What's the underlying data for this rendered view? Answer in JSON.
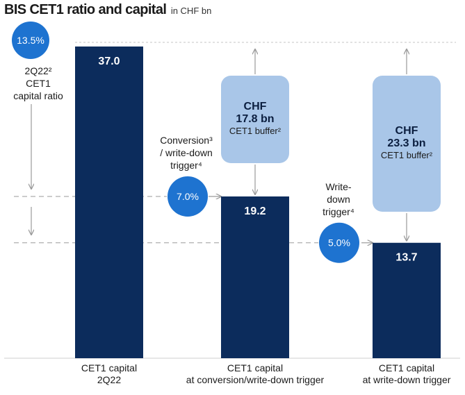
{
  "title": "BIS CET1 ratio and capital",
  "unit": "in CHF bn",
  "colors": {
    "bar": "#0c2c5c",
    "buffer": "#a9c6e8",
    "circle": "#1e73d0",
    "guide": "#9a9a9a"
  },
  "chart_data": {
    "type": "bar",
    "title": "BIS CET1 ratio and capital",
    "unit": "in CHF bn",
    "ylim": [
      0,
      37.0
    ],
    "categories": [
      [
        "CET1 capital",
        "2Q22"
      ],
      [
        "CET1 capital",
        "at conversion/write-down trigger"
      ],
      [
        "CET1 capital",
        "at write-down trigger"
      ]
    ],
    "values": [
      37.0,
      19.2,
      13.7
    ],
    "value_labels": [
      "37.0",
      "19.2",
      "13.7"
    ],
    "buffers": [
      {
        "bar_index": 1,
        "lines": [
          "CHF",
          "17.8 bn",
          "CET1 buffer²"
        ],
        "value": 17.8
      },
      {
        "bar_index": 2,
        "lines": [
          "CHF",
          "23.3 bn",
          "CET1 buffer²"
        ],
        "value": 23.3
      }
    ],
    "ratios": [
      {
        "label": "13.5%",
        "value": 37.0,
        "note": [
          "2Q22²",
          "CET1",
          "capital ratio"
        ]
      },
      {
        "label": "7.0%",
        "value": 19.2,
        "note": [
          "Conversion³",
          "/ write-down",
          "trigger⁴"
        ]
      },
      {
        "label": "5.0%",
        "value": 13.7,
        "note": [
          "Write-",
          "down",
          "trigger⁴"
        ]
      }
    ],
    "grid": false,
    "legend": "none"
  }
}
